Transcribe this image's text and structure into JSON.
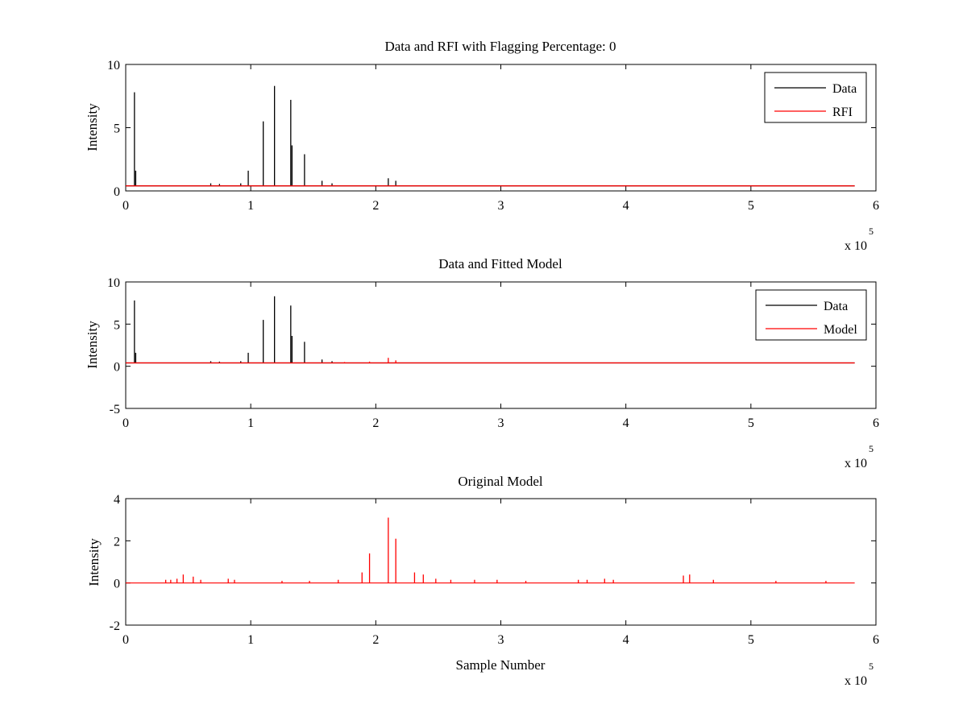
{
  "chart_data": [
    {
      "type": "line",
      "title": "Data and RFI with Flagging Percentage: 0",
      "xlabel": "",
      "ylabel": "Intensity",
      "xlim": [
        0,
        600000
      ],
      "ylim": [
        0,
        10
      ],
      "xticks": [
        0,
        1,
        2,
        3,
        4,
        5,
        6
      ],
      "yticks": [
        0,
        5,
        10
      ],
      "x_multiplier": {
        "base": "x 10",
        "exponent": "5"
      },
      "grid": false,
      "legend_position": "top-right",
      "legend": [
        {
          "name": "Data",
          "color": "#000000"
        },
        {
          "name": "RFI",
          "color": "#ff0000"
        }
      ],
      "series": [
        {
          "name": "Data",
          "color": "#000000",
          "baseline": 0.4,
          "x_end": 583000,
          "spikes": [
            [
              7000,
              7.8
            ],
            [
              8000,
              1.6
            ],
            [
              98000,
              1.6
            ],
            [
              110000,
              5.5
            ],
            [
              119000,
              8.3
            ],
            [
              132000,
              7.2
            ],
            [
              133000,
              3.6
            ],
            [
              143000,
              2.9
            ],
            [
              157000,
              0.8
            ],
            [
              165000,
              0.6
            ],
            [
              210000,
              1.0
            ],
            [
              216000,
              0.8
            ],
            [
              68000,
              0.6
            ],
            [
              75000,
              0.55
            ],
            [
              92000,
              0.6
            ]
          ]
        },
        {
          "name": "RFI",
          "color": "#ff0000",
          "baseline": 0.4,
          "x_end": 583000,
          "spikes": []
        }
      ]
    },
    {
      "type": "line",
      "title": "Data and Fitted Model",
      "xlabel": "",
      "ylabel": "Intensity",
      "xlim": [
        0,
        600000
      ],
      "ylim": [
        -5,
        10
      ],
      "xticks": [
        0,
        1,
        2,
        3,
        4,
        5,
        6
      ],
      "yticks": [
        -5,
        0,
        5,
        10
      ],
      "x_multiplier": {
        "base": "x 10",
        "exponent": "5"
      },
      "grid": false,
      "legend_position": "top-right",
      "legend": [
        {
          "name": "Data",
          "color": "#000000"
        },
        {
          "name": "Model",
          "color": "#ff0000"
        }
      ],
      "series": [
        {
          "name": "Data",
          "color": "#000000",
          "baseline": 0.4,
          "x_end": 583000,
          "spikes": [
            [
              7000,
              7.8
            ],
            [
              8000,
              1.6
            ],
            [
              98000,
              1.6
            ],
            [
              110000,
              5.5
            ],
            [
              119000,
              8.3
            ],
            [
              132000,
              7.2
            ],
            [
              133000,
              3.6
            ],
            [
              143000,
              2.9
            ],
            [
              157000,
              0.8
            ],
            [
              165000,
              0.6
            ],
            [
              68000,
              0.6
            ],
            [
              75000,
              0.55
            ],
            [
              92000,
              0.6
            ]
          ]
        },
        {
          "name": "Model",
          "color": "#ff0000",
          "baseline": 0.4,
          "x_end": 583000,
          "spikes": [
            [
              210000,
              1.0
            ],
            [
              216000,
              0.7
            ],
            [
              195000,
              0.55
            ],
            [
              175000,
              0.5
            ]
          ]
        }
      ]
    },
    {
      "type": "line",
      "title": "Original Model",
      "xlabel": "Sample Number",
      "ylabel": "Intensity",
      "xlim": [
        0,
        600000
      ],
      "ylim": [
        -2,
        4
      ],
      "xticks": [
        0,
        1,
        2,
        3,
        4,
        5,
        6
      ],
      "yticks": [
        -2,
        0,
        2,
        4
      ],
      "x_multiplier": {
        "base": "x 10",
        "exponent": "5"
      },
      "grid": false,
      "legend_position": "none",
      "legend": [],
      "series": [
        {
          "name": "Original Model",
          "color": "#ff0000",
          "baseline": 0.0,
          "x_end": 583000,
          "spikes": [
            [
              32000,
              0.15
            ],
            [
              36000,
              0.15
            ],
            [
              41000,
              0.2
            ],
            [
              46000,
              0.4
            ],
            [
              54000,
              0.3
            ],
            [
              60000,
              0.15
            ],
            [
              82000,
              0.2
            ],
            [
              87000,
              0.15
            ],
            [
              125000,
              0.1
            ],
            [
              147000,
              0.1
            ],
            [
              170000,
              0.15
            ],
            [
              189000,
              0.5
            ],
            [
              195000,
              1.4
            ],
            [
              210000,
              3.1
            ],
            [
              216000,
              2.1
            ],
            [
              231000,
              0.5
            ],
            [
              238000,
              0.4
            ],
            [
              248000,
              0.2
            ],
            [
              260000,
              0.15
            ],
            [
              279000,
              0.15
            ],
            [
              297000,
              0.15
            ],
            [
              320000,
              0.1
            ],
            [
              362000,
              0.15
            ],
            [
              369000,
              0.15
            ],
            [
              383000,
              0.2
            ],
            [
              390000,
              0.15
            ],
            [
              446000,
              0.35
            ],
            [
              451000,
              0.4
            ],
            [
              470000,
              0.15
            ],
            [
              520000,
              0.1
            ],
            [
              560000,
              0.1
            ]
          ]
        }
      ]
    }
  ]
}
